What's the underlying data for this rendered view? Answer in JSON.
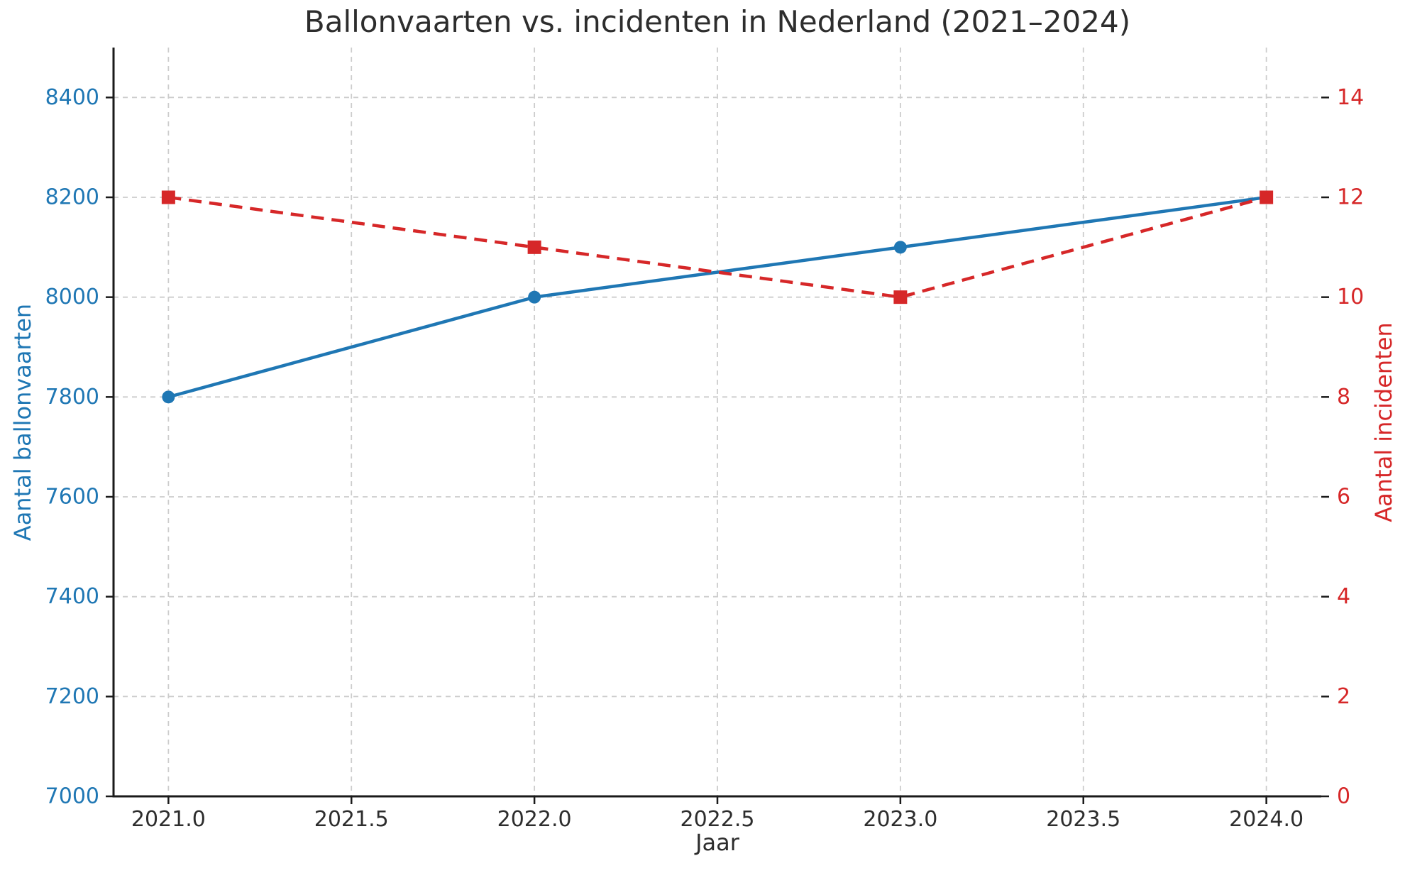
{
  "chart_data": {
    "type": "line",
    "title": "Ballonvaarten vs. incidenten in Nederland (2021–2024)",
    "xlabel": "Jaar",
    "x": [
      2021,
      2022,
      2023,
      2024
    ],
    "series": [
      {
        "name": "Aantal ballonvaarten",
        "axis": "left",
        "values": [
          7800,
          8000,
          8100,
          8200
        ],
        "color": "#1f77b4",
        "line_style": "solid",
        "marker": "circle"
      },
      {
        "name": "Aantal incidenten",
        "axis": "right",
        "values": [
          12,
          11,
          10,
          12
        ],
        "color": "#d62728",
        "line_style": "dashed",
        "marker": "square"
      }
    ],
    "x_tick_values": [
      2021.0,
      2021.5,
      2022.0,
      2022.5,
      2023.0,
      2023.5,
      2024.0
    ],
    "x_tick_labels": [
      "2021.0",
      "2021.5",
      "2022.0",
      "2022.5",
      "2023.0",
      "2023.5",
      "2024.0"
    ],
    "xlim": [
      2020.85,
      2024.15
    ],
    "left_axis": {
      "label": "Aantal ballonvaarten",
      "color": "#1f77b4",
      "tick_values": [
        7000,
        7200,
        7400,
        7600,
        7800,
        8000,
        8200,
        8400
      ],
      "tick_labels": [
        "7000",
        "7200",
        "7400",
        "7600",
        "7800",
        "8000",
        "8200",
        "8400"
      ],
      "range": [
        7000,
        8500
      ]
    },
    "right_axis": {
      "label": "Aantal incidenten",
      "color": "#d62728",
      "tick_values": [
        0,
        2,
        4,
        6,
        8,
        10,
        12,
        14
      ],
      "tick_labels": [
        "0",
        "2",
        "4",
        "6",
        "8",
        "10",
        "12",
        "14"
      ],
      "range": [
        0,
        15
      ]
    },
    "grid": true,
    "legend": "none",
    "grid_color": "#cccccc",
    "spine_color": "#1a1a1a",
    "tick_text_color": "#2d2d2d"
  }
}
